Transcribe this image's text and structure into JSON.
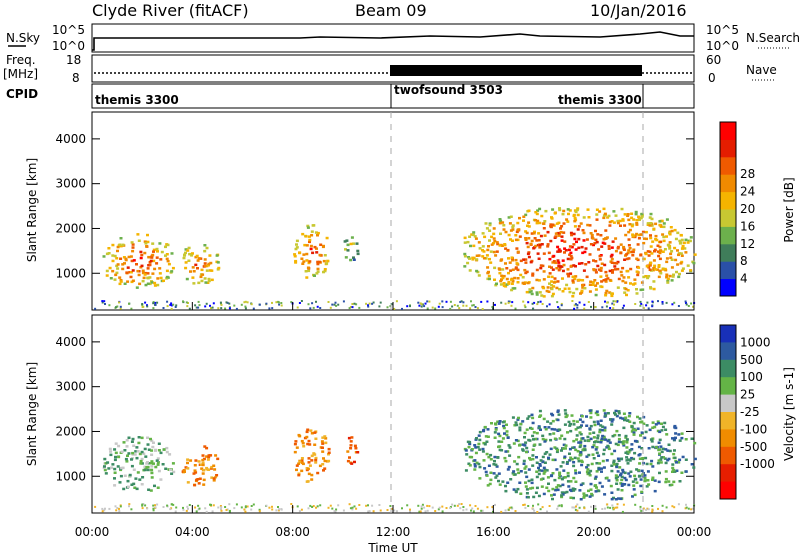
{
  "header": {
    "station": "Clyde River (fitACF)",
    "beam": "Beam 09",
    "date": "10/Jan/2016"
  },
  "sky_panel": {
    "left_label": "N.Sky",
    "left_ticks": [
      "10^5",
      "10^0"
    ],
    "right_ticks": [
      "10^5",
      "10^0"
    ],
    "right_label": "N.Search"
  },
  "freq_panel": {
    "left_label_1": "Freq.",
    "left_label_2": "[MHz]",
    "left_ticks": [
      "18",
      "8"
    ],
    "right_ticks": [
      "60",
      "0"
    ],
    "right_label": "Nave"
  },
  "cpid_panel": {
    "label": "CPID",
    "segments": [
      {
        "name": "themis 3300",
        "start_hour": 0
      },
      {
        "name": "twofsound 3503",
        "start_hour": 12
      },
      {
        "name": "themis 3300",
        "start_hour": 22
      }
    ]
  },
  "x_axis": {
    "label": "Time UT",
    "ticks": [
      "00:00",
      "04:00",
      "08:00",
      "12:00",
      "16:00",
      "20:00",
      "00:00"
    ],
    "range_hours": [
      0,
      24
    ]
  },
  "power_panel": {
    "ylabel": "Slant Range [km]",
    "yticks": [
      "1000",
      "2000",
      "3000",
      "4000"
    ],
    "colorbar_label": "Power [dB]",
    "colorbar_ticks": [
      "4",
      "8",
      "12",
      "16",
      "20",
      "24",
      "28"
    ],
    "colors": [
      "#0000ff",
      "#2a50a8",
      "#3f7d5a",
      "#6cb04c",
      "#c8c832",
      "#f5b400",
      "#f08a00",
      "#ef5a00",
      "#e41d00",
      "#ff0000"
    ]
  },
  "velocity_panel": {
    "ylabel": "Slant Range [km]",
    "yticks": [
      "1000",
      "2000",
      "3000",
      "4000"
    ],
    "colorbar_label": "Velocity [m s-1]",
    "colorbar_ticks": [
      "1000",
      "500",
      "100",
      "25",
      "-25",
      "-100",
      "-500",
      "-1000"
    ],
    "colors": [
      "#1830b8",
      "#2d5aa0",
      "#3c8c64",
      "#64b446",
      "#c8c8c8",
      "#f0b428",
      "#f08c00",
      "#ef5a00",
      "#e61e00",
      "#ff0000"
    ]
  },
  "chart_data": {
    "type": "heatmap",
    "x_unit": "hours UT",
    "y_unit": "km",
    "xlim": [
      0,
      24
    ],
    "ylim": [
      180,
      4600
    ],
    "power_patches": [
      {
        "t0": 0.4,
        "t1": 3.2,
        "r0": 700,
        "r1": 1900,
        "db": 24
      },
      {
        "t0": 3.5,
        "t1": 5.0,
        "r0": 800,
        "r1": 1700,
        "db": 22
      },
      {
        "t0": 8.0,
        "t1": 9.4,
        "r0": 900,
        "r1": 2100,
        "db": 24
      },
      {
        "t0": 10.0,
        "t1": 10.6,
        "r0": 1300,
        "r1": 1900,
        "db": 14
      },
      {
        "t0": 14.8,
        "t1": 24.0,
        "r0": 500,
        "r1": 2500,
        "db": 26
      }
    ],
    "velocity_patches": [
      {
        "t0": 0.4,
        "t1": 3.2,
        "r0": 700,
        "r1": 1900,
        "v": 100
      },
      {
        "t0": 3.5,
        "t1": 5.0,
        "r0": 800,
        "r1": 1700,
        "v": -300
      },
      {
        "t0": 8.0,
        "t1": 9.4,
        "r0": 900,
        "r1": 2100,
        "v": -200
      },
      {
        "t0": 10.0,
        "t1": 10.6,
        "r0": 1300,
        "r1": 1900,
        "v": -600
      },
      {
        "t0": 14.8,
        "t1": 24.0,
        "r0": 500,
        "r1": 2500,
        "v": 200
      }
    ]
  }
}
